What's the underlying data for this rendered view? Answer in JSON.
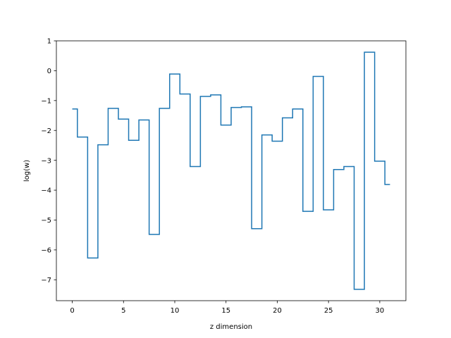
{
  "chart_data": {
    "type": "line",
    "drawstyle": "steps-mid",
    "xlabel": "z dimension",
    "ylabel": "log(w)",
    "xlim": [
      -1.55,
      32.55
    ],
    "ylim": [
      -7.7,
      1.0
    ],
    "grid": false,
    "x_ticks": [
      0,
      5,
      10,
      15,
      20,
      25,
      30
    ],
    "y_ticks": [
      1,
      0,
      -1,
      -2,
      -3,
      -4,
      -5,
      -6,
      -7
    ],
    "x_tick_labels": [
      "0",
      "5",
      "10",
      "15",
      "20",
      "25",
      "30"
    ],
    "y_tick_labels": [
      "1",
      "0",
      "−1",
      "−2",
      "−3",
      "−4",
      "−5",
      "−6",
      "−7"
    ],
    "series": [
      {
        "color": "#1f77b4",
        "x": [
          0,
          1,
          2,
          3,
          4,
          5,
          6,
          7,
          8,
          9,
          10,
          11,
          12,
          13,
          14,
          15,
          16,
          17,
          18,
          19,
          20,
          21,
          22,
          23,
          24,
          25,
          26,
          27,
          28,
          29,
          30,
          31
        ],
        "values": [
          -1.28,
          -2.22,
          -6.27,
          -2.48,
          -1.26,
          -1.62,
          -2.33,
          -1.65,
          -5.48,
          -1.26,
          -0.11,
          -0.78,
          -3.21,
          -0.86,
          -0.81,
          -1.82,
          -1.23,
          -1.21,
          -5.29,
          -2.15,
          -2.36,
          -1.58,
          -1.28,
          -4.71,
          -0.19,
          -4.66,
          -3.31,
          -3.21,
          -7.32,
          0.62,
          -3.03,
          -3.81
        ]
      }
    ]
  }
}
